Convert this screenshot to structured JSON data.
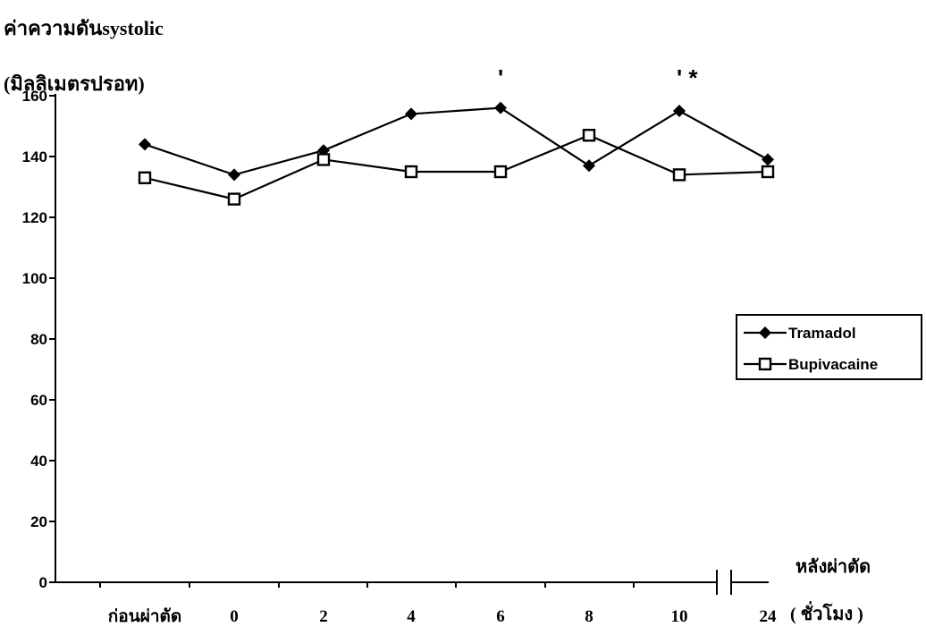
{
  "chart_data": {
    "type": "line",
    "ylabel_line1": "ค่าความดันsystolic",
    "ylabel_line2": "(มิลลิเมตรปรอท)",
    "xlabel_line1": "หลังผ่าตัด",
    "xlabel_line2": "( ชั่วโมง )",
    "categories": [
      "ก่อนผ่าตัด",
      "0",
      "2",
      "4",
      "6",
      "8",
      "10",
      "24"
    ],
    "ylim": [
      0,
      160
    ],
    "yticks": [
      0,
      20,
      40,
      60,
      80,
      100,
      120,
      140,
      160
    ],
    "series": [
      {
        "name": "Tramadol",
        "marker": "diamond",
        "values": [
          144,
          134,
          142,
          154,
          156,
          137,
          155,
          139
        ]
      },
      {
        "name": "Bupivacaine",
        "marker": "square",
        "values": [
          133,
          126,
          139,
          135,
          135,
          147,
          134,
          135
        ]
      }
    ],
    "annotations": [
      {
        "category": "6",
        "text": "'"
      },
      {
        "category": "10",
        "text": "' *"
      }
    ],
    "legend_position": "right",
    "grid": false,
    "axis_break": true
  }
}
